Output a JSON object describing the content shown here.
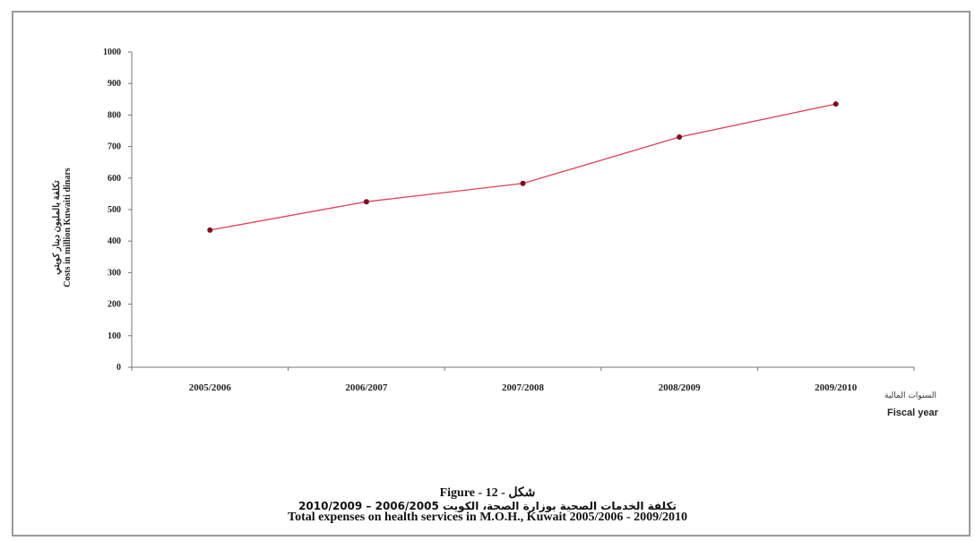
{
  "chart_data": {
    "type": "line",
    "categories": [
      "2005/2006",
      "2006/2007",
      "2007/2008",
      "2008/2009",
      "2009/2010"
    ],
    "values": [
      435,
      525,
      583,
      730,
      835
    ],
    "ylim": [
      0,
      1000
    ],
    "yticks": [
      0,
      100,
      200,
      300,
      400,
      500,
      600,
      700,
      800,
      900,
      1000
    ],
    "ylabel_ar": "تكلفة بالمليون دينار كويتي",
    "ylabel_en": "Costs in million Kuwaiti dinars",
    "xlabel_ar": "السنوات المالية",
    "xlabel_en": "Fiscal year",
    "grid": false,
    "line_color": "#e0405a",
    "marker_color": "#7a1020"
  },
  "caption": {
    "figure": "Figure - 12 - شكل",
    "arabic": "تكلفة الخدمات الصحية بوزارة الصحة، الكويت 2006/2005 – 2010/2009",
    "english": "Total expenses on health services in M.O.H., Kuwait  2005/2006 -  2009/2010"
  }
}
